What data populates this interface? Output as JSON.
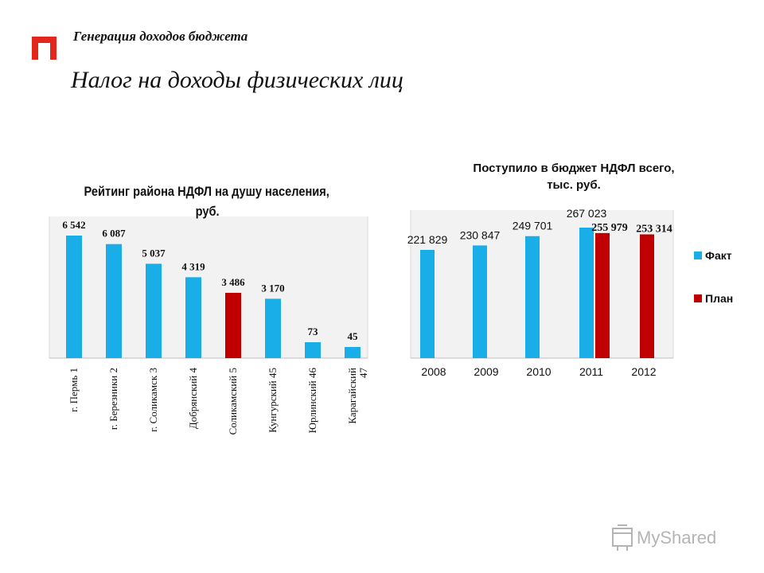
{
  "header": {
    "subtitle": "Генерация доходов бюджета",
    "title": "Налог на доходы физических лиц"
  },
  "chart_data": [
    {
      "type": "bar",
      "title_lines": [
        "Рейтинг района НДФЛ на душу населения,",
        "руб."
      ],
      "categories": [
        "г. Пермь 1",
        "г. Березники 2",
        "г. Соликамск 3",
        "Добрянский 4",
        "Соликамский 5",
        "Кунгурский 45",
        "Юрлинский 46",
        "Карагайский 47"
      ],
      "values": [
        6542,
        6087,
        5037,
        4319,
        3486,
        3170,
        73,
        45
      ],
      "value_labels": [
        "6 542",
        "6 087",
        "5 037",
        "4 319",
        "3 486",
        "3 170",
        "73",
        "45"
      ],
      "colors": [
        "#1aaee8",
        "#1aaee8",
        "#1aaee8",
        "#1aaee8",
        "#c00000",
        "#1aaee8",
        "#1aaee8",
        "#1aaee8"
      ],
      "plot_background": "#f2f2f2"
    },
    {
      "type": "bar",
      "title_lines": [
        "Поступило в бюджет НДФЛ всего,",
        "тыс. руб."
      ],
      "categories": [
        "2008",
        "2009",
        "2010",
        "2011",
        "2012"
      ],
      "series": [
        {
          "name": "Факт",
          "color": "#1aaee8",
          "values": [
            221829,
            230847,
            249701,
            267023,
            null
          ],
          "labels": [
            "221 829",
            "230 847",
            "249 701",
            "267 023",
            ""
          ]
        },
        {
          "name": "План",
          "color": "#c00000",
          "values": [
            null,
            null,
            null,
            255979,
            253314
          ],
          "labels": [
            "",
            "",
            "",
            "255 979",
            "253 314"
          ]
        }
      ],
      "legend_position": "right",
      "plot_background": "#f2f2f2"
    }
  ],
  "watermark": {
    "text": "MyShared"
  }
}
